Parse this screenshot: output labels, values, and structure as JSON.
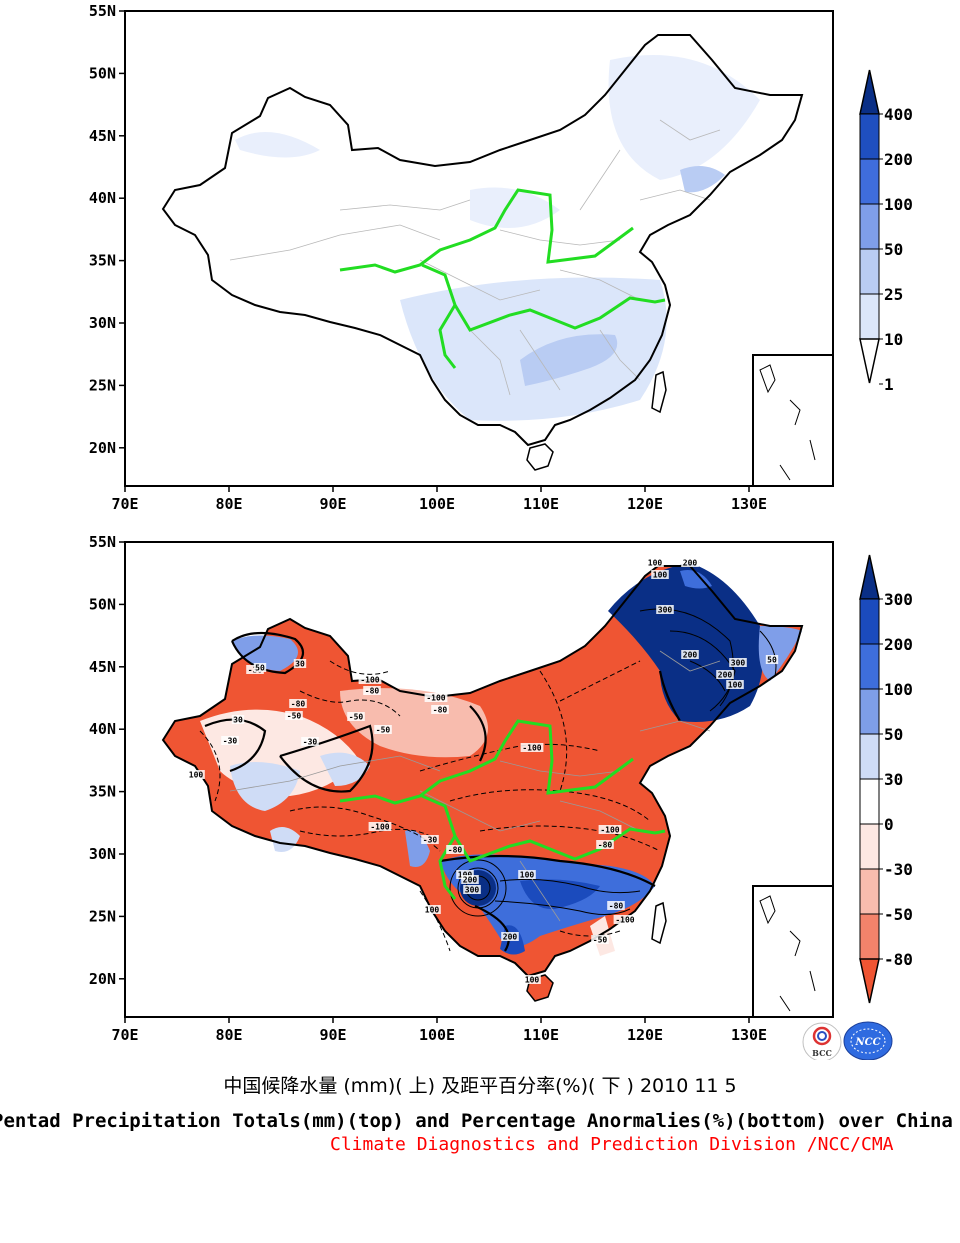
{
  "axes": {
    "lat_labels": [
      "55N",
      "50N",
      "45N",
      "40N",
      "35N",
      "30N",
      "25N",
      "20N"
    ],
    "lon_labels": [
      "70E",
      "80E",
      "90E",
      "100E",
      "110E",
      "120E",
      "130E"
    ]
  },
  "top_panel": {
    "colorbar_labels": [
      "400",
      "200",
      "100",
      "50",
      "25",
      "10",
      "1"
    ],
    "colors": [
      "#ffffff",
      "#dbe6fa",
      "#b9ccf3",
      "#7f9ee9",
      "#3f6ddc",
      "#1f4fc0",
      "#0a2f86"
    ]
  },
  "bottom_panel": {
    "colorbar_labels": [
      "300",
      "200",
      "100",
      "50",
      "30",
      "0",
      "-30",
      "-50",
      "-80"
    ],
    "colors": [
      "#ef5533",
      "#f3836b",
      "#f8bcae",
      "#fde8e3",
      "#ffffff",
      "#cfdcf6",
      "#7e9ee8",
      "#3e6edb",
      "#1b4bbd",
      "#0a2f86"
    ],
    "contour_labels": [
      "-100",
      "-80",
      "-50",
      "-30",
      "30",
      "50",
      "100",
      "200",
      "300"
    ]
  },
  "logos": {
    "bcc": "BCC",
    "ncc": "NCC"
  },
  "caption_cn": "中国候降水量 (mm)( 上) 及距平百分率(%)( 下 ) 2010 11 5",
  "caption_en": "Pentad Precipitation Totals(mm)(top) and Percentage Anormalies(%)(bottom) over China",
  "caption_division": "Climate Diagnostics and Prediction Division /NCC/CMA"
}
